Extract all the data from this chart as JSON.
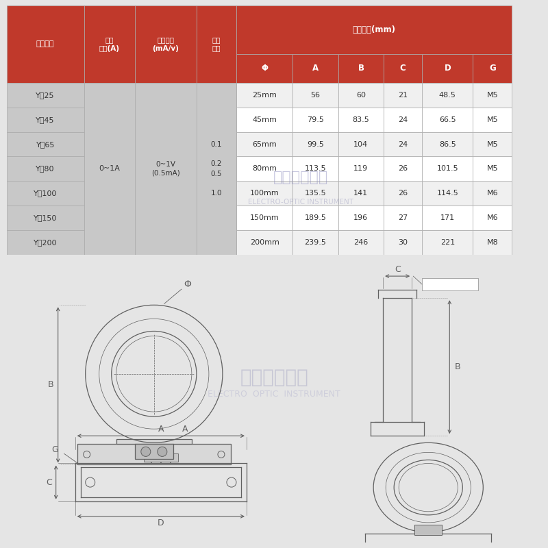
{
  "bg_color": "#e5e5e5",
  "table_red": "#c0392b",
  "table_gray_dark": "#c8c8c8",
  "table_gray_light": "#f0f0f0",
  "table_white": "#ffffff",
  "header_text": "#ffffff",
  "data_text": "#333333",
  "line_color": "#606060",
  "watermark_cn": "电光仪器仪表",
  "watermark_en": "ELECTRO-OPTIC INSTRUMENT",
  "watermark_cn2": "电光仪器仪表",
  "watermark_en2": "ELECTRO A OPTIC INSTRUMENT",
  "col_headers1": [
    "型号规格",
    "额定\n输入(A)",
    "额定输出\n(mA/v)",
    "精度\n等级",
    "外形尺寸(mm)"
  ],
  "col_headers2": [
    "Φ",
    "A",
    "B",
    "C",
    "D",
    "G"
  ],
  "row_models": [
    "Y－25",
    "Y－45",
    "Y－65",
    "Y－80",
    "Y－100",
    "Y－150",
    "Y－200"
  ],
  "row_phi": [
    "25mm",
    "45mm",
    "65mm",
    "80mm",
    "100mm",
    "150mm",
    "200mm"
  ],
  "row_A": [
    "56",
    "79.5",
    "99.5",
    "113.5",
    "135.5",
    "189.5",
    "239.5"
  ],
  "row_B": [
    "60",
    "83.5",
    "104",
    "119",
    "141",
    "196",
    "246"
  ],
  "row_C": [
    "21",
    "24",
    "24",
    "26",
    "26",
    "27",
    "30"
  ],
  "row_D": [
    "48.5",
    "66.5",
    "86.5",
    "101.5",
    "114.5",
    "171",
    "221"
  ],
  "row_G": [
    "M5",
    "M5",
    "M5",
    "M5",
    "M6",
    "M6",
    "M8"
  ],
  "merged_input": "0~1A",
  "merged_output_line1": "0~1V",
  "merged_output_line2": "(0.5mA)",
  "accuracy": [
    "0.1",
    "0.2",
    "0.5",
    "1.0"
  ],
  "accuracy_rows": [
    2,
    3,
    3,
    4
  ]
}
